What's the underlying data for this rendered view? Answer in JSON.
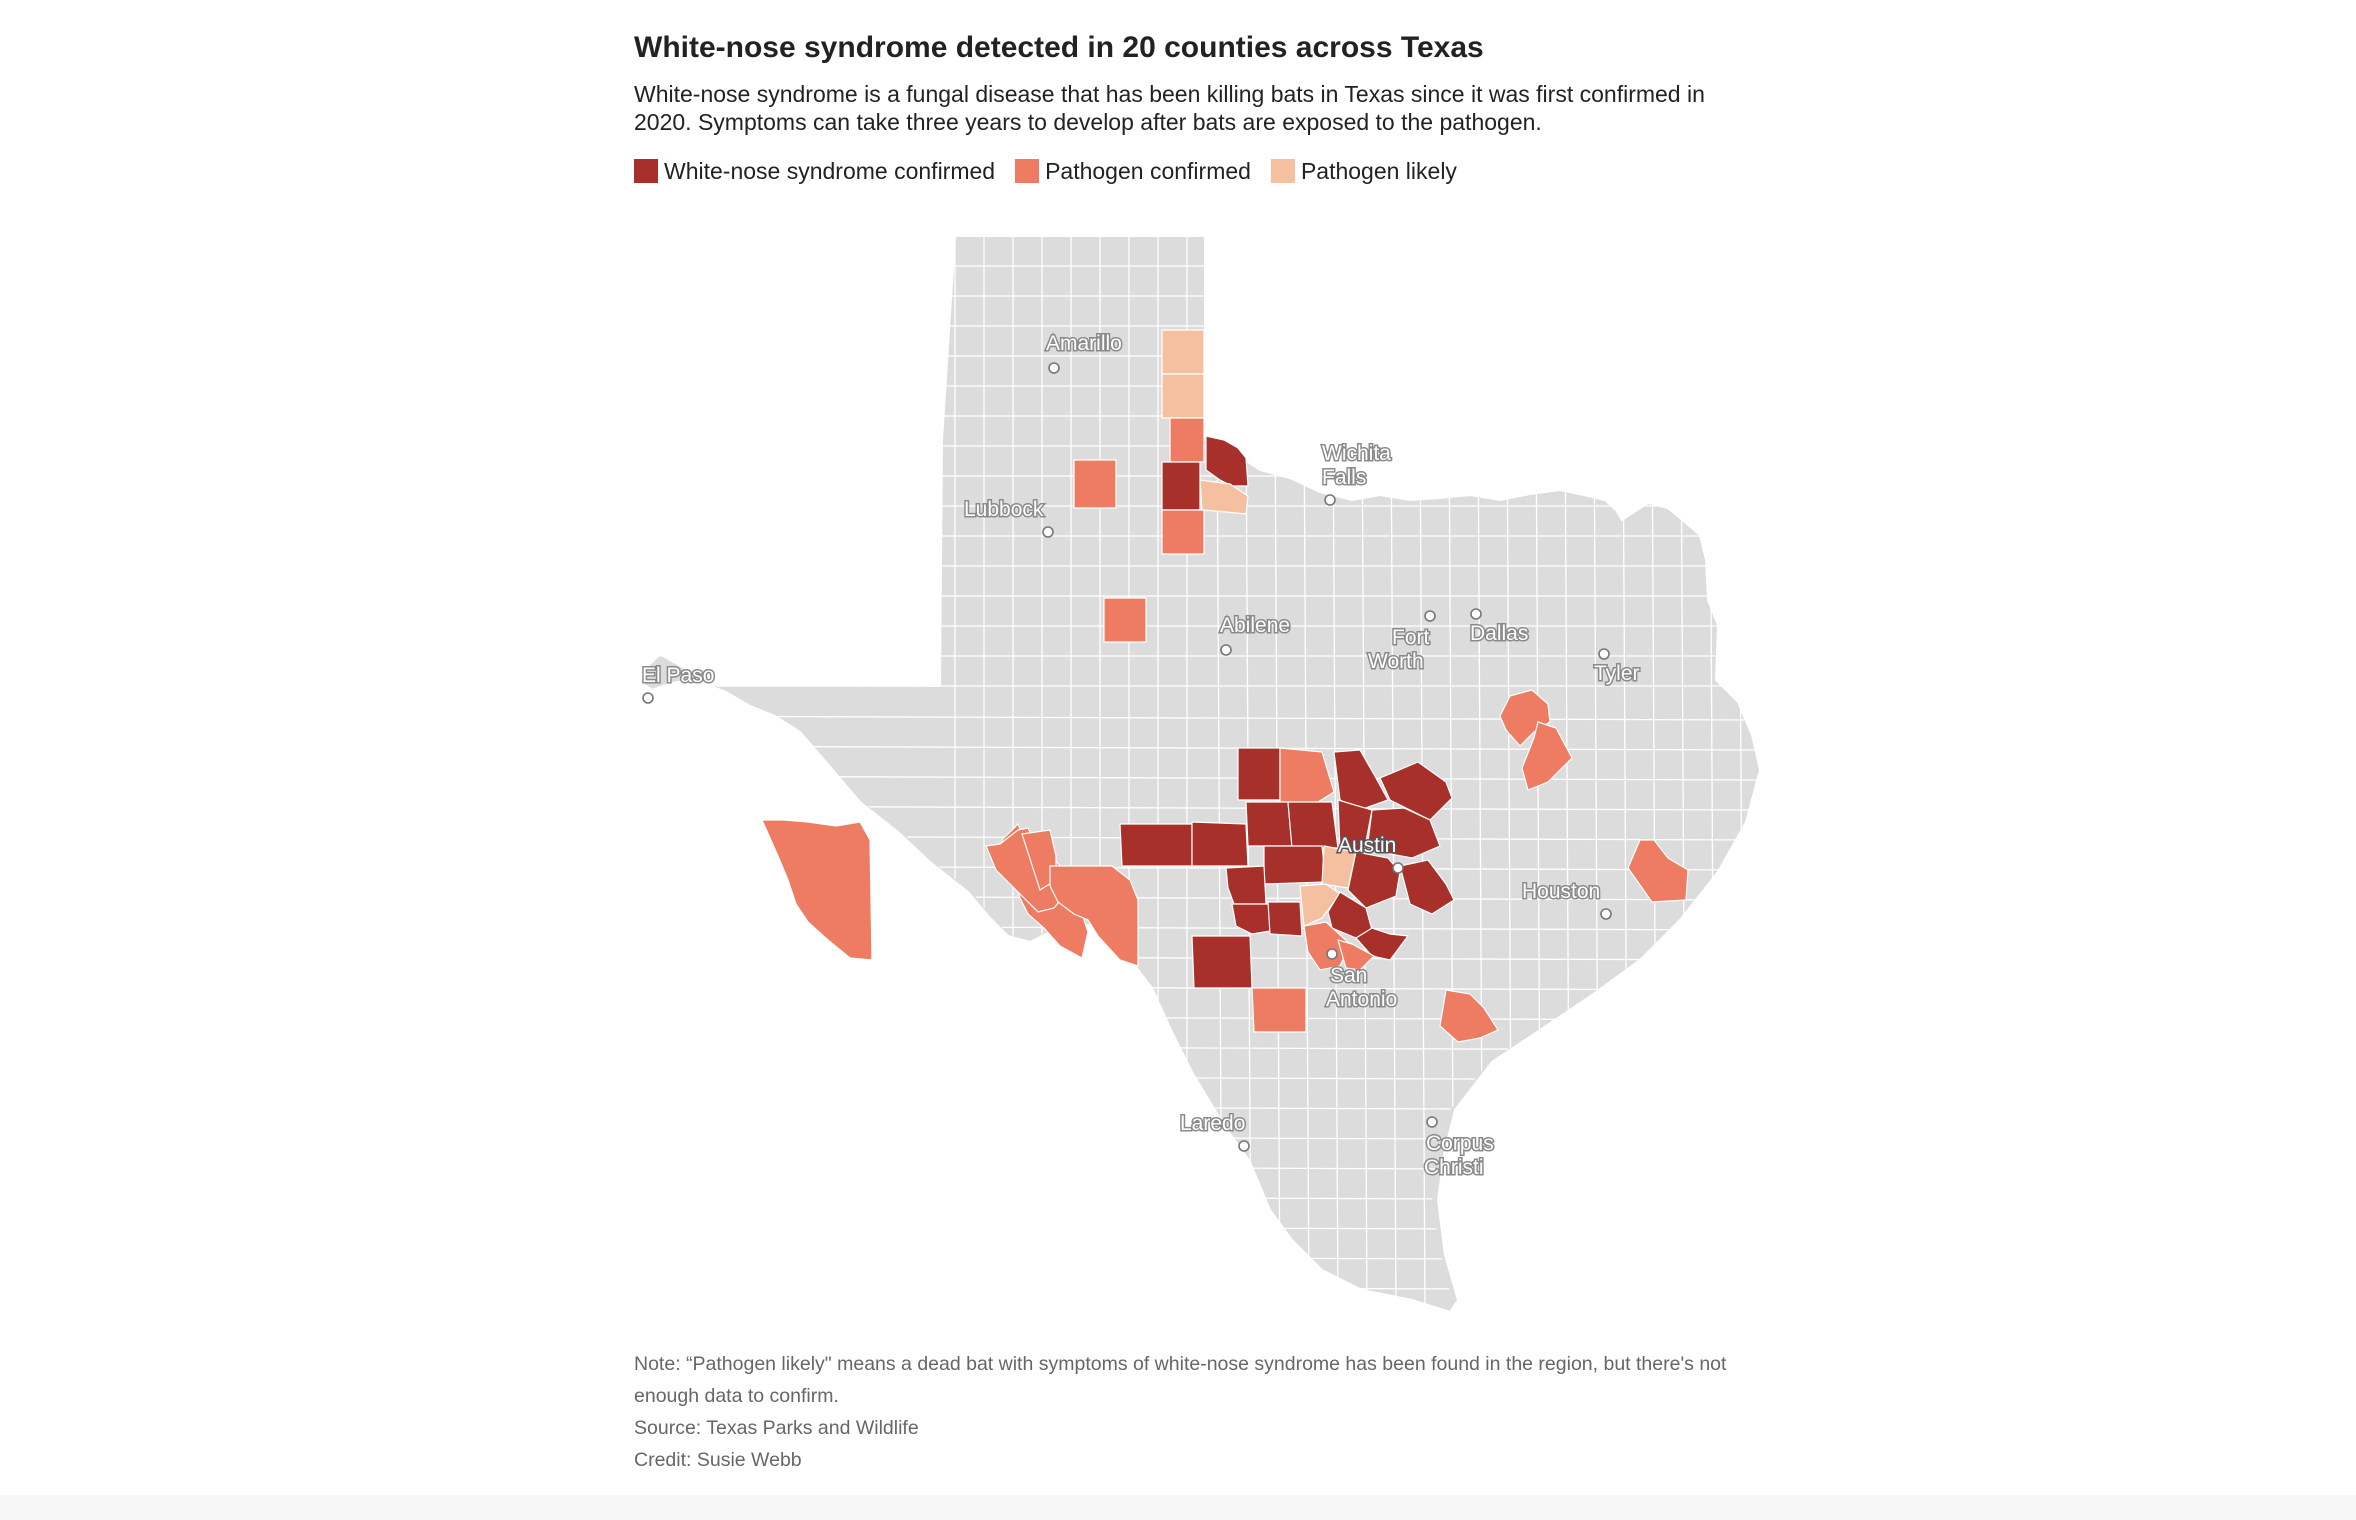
{
  "header": {
    "title": "White-nose syndrome detected in 20 counties across Texas",
    "subtitle": "White-nose syndrome is a fungal disease that has been killing bats in Texas since it was first confirmed in 2020. Symptoms can take three years to develop after bats are exposed to the pathogen."
  },
  "legend": [
    {
      "label": "White-nose syndrome confirmed",
      "color": "#a8302a"
    },
    {
      "label": "Pathogen confirmed",
      "color": "#ee7c62"
    },
    {
      "label": "Pathogen likely",
      "color": "#f5c09f"
    }
  ],
  "map": {
    "base_color": "#dcdcdc",
    "county_line_color": "#ffffff",
    "cities": [
      {
        "name": "Amarillo"
      },
      {
        "name": "Wichita Falls"
      },
      {
        "name": "Lubbock"
      },
      {
        "name": "Abilene"
      },
      {
        "name": "Fort Worth"
      },
      {
        "name": "Dallas"
      },
      {
        "name": "Tyler"
      },
      {
        "name": "El Paso"
      },
      {
        "name": "Austin"
      },
      {
        "name": "Houston"
      },
      {
        "name": "San Antonio"
      },
      {
        "name": "Laredo"
      },
      {
        "name": "Corpus Christi"
      }
    ]
  },
  "footer": {
    "note": "Note: “Pathogen likely\" means a dead bat with symptoms of white-nose syndrome has been found in the region, but there's not enough data to confirm.",
    "source": "Source: Texas Parks and Wildlife",
    "credit": "Credit: Susie Webb"
  }
}
